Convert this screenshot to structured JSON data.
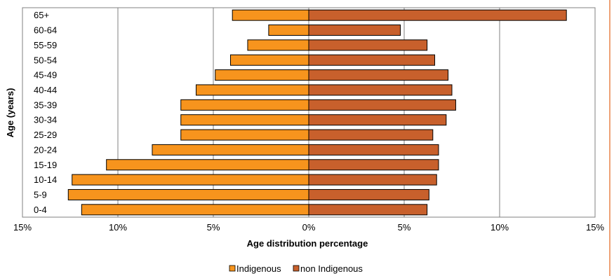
{
  "chart_data": {
    "type": "bar",
    "orientation": "horizontal",
    "layout": "population-pyramid",
    "xlabel": "Age distribution percentage",
    "ylabel": "Age (years)",
    "xlim": [
      -15,
      15
    ],
    "x_ticks": [
      -15,
      -10,
      -5,
      0,
      5,
      10,
      15
    ],
    "x_tick_labels": [
      "15%",
      "10%",
      "5%",
      "0%",
      "5%",
      "10%",
      "15%"
    ],
    "grid": "vertical",
    "legend_placement": "bottom",
    "categories": [
      "0-4",
      "5-9",
      "10-14",
      "15-19",
      "20-24",
      "25-29",
      "30-34",
      "35-39",
      "40-44",
      "45-49",
      "50-54",
      "55-59",
      "60-64",
      "65+"
    ],
    "series": [
      {
        "name": "Indigenous",
        "side": "left",
        "color": "#F7941D",
        "values": [
          11.9,
          12.6,
          12.4,
          10.6,
          8.2,
          6.7,
          6.7,
          6.7,
          5.9,
          4.9,
          4.1,
          3.2,
          2.1,
          4.0
        ]
      },
      {
        "name": "non Indigenous",
        "side": "right",
        "color": "#C8602C",
        "values": [
          6.2,
          6.3,
          6.7,
          6.8,
          6.8,
          6.5,
          7.2,
          7.7,
          7.5,
          7.3,
          6.6,
          6.2,
          4.8,
          13.5
        ]
      }
    ]
  }
}
